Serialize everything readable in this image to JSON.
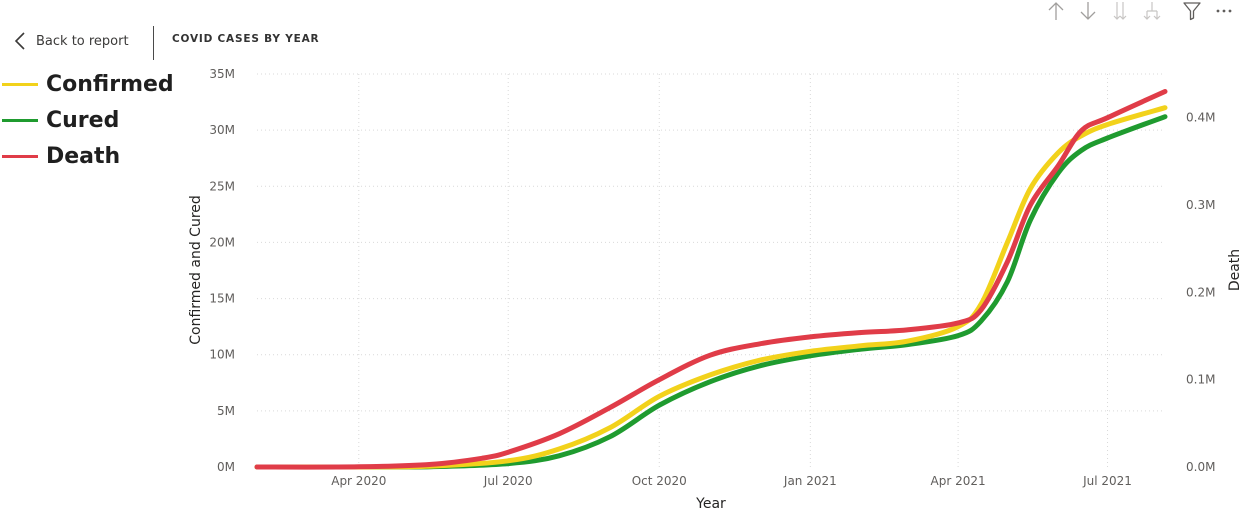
{
  "header": {
    "back_label": "Back to report",
    "page_title": "COVID CASES BY YEAR"
  },
  "toolbar": {
    "icons": [
      "drill-up-icon",
      "drill-down-icon",
      "expand-all-down-icon",
      "expand-next-level-icon",
      "filter-icon",
      "more-options-icon"
    ]
  },
  "legend": {
    "items": [
      {
        "label": "Confirmed",
        "color": "#F2D21B"
      },
      {
        "label": "Cured",
        "color": "#1F9B2F"
      },
      {
        "label": "Death",
        "color": "#E03C48"
      }
    ]
  },
  "chart_data": {
    "type": "line",
    "title": "",
    "xlabel": "Year",
    "ylabel": "Confirmed and Cured",
    "y2label": "Death",
    "x_ticks": [
      "Apr 2020",
      "Jul 2020",
      "Oct 2020",
      "Jan 2021",
      "Apr 2021",
      "Jul 2021"
    ],
    "x_tick_dates": [
      "2020-04-01",
      "2020-07-01",
      "2020-10-01",
      "2021-01-01",
      "2021-04-01",
      "2021-07-01"
    ],
    "xlim": [
      "2020-01-30",
      "2021-08-05"
    ],
    "y_ticks": [
      "0M",
      "5M",
      "10M",
      "15M",
      "20M",
      "25M",
      "30M",
      "35M"
    ],
    "ylim": [
      0,
      35000000
    ],
    "y2_ticks": [
      "0.0M",
      "0.1M",
      "0.2M",
      "0.3M",
      "0.4M"
    ],
    "y2lim": [
      0,
      0.45
    ],
    "grid": true,
    "legend_position": "top-left",
    "series": [
      {
        "name": "Confirmed",
        "axis": "left",
        "color": "#F2D21B",
        "points": [
          [
            "2020-01-30",
            0
          ],
          [
            "2020-04-01",
            0.002
          ],
          [
            "2020-05-15",
            0.08
          ],
          [
            "2020-07-01",
            0.55
          ],
          [
            "2020-08-01",
            1.6
          ],
          [
            "2020-09-01",
            3.5
          ],
          [
            "2020-10-01",
            6.3
          ],
          [
            "2020-11-01",
            8.2
          ],
          [
            "2020-12-01",
            9.5
          ],
          [
            "2021-01-01",
            10.3
          ],
          [
            "2021-02-01",
            10.8
          ],
          [
            "2021-03-01",
            11.2
          ],
          [
            "2021-04-01",
            12.5
          ],
          [
            "2021-04-15",
            14.5
          ],
          [
            "2021-05-01",
            20.0
          ],
          [
            "2021-05-15",
            24.8
          ],
          [
            "2021-06-01",
            28.0
          ],
          [
            "2021-06-15",
            29.5
          ],
          [
            "2021-07-01",
            30.5
          ],
          [
            "2021-08-05",
            32.0
          ]
        ]
      },
      {
        "name": "Cured",
        "axis": "left",
        "color": "#1F9B2F",
        "points": [
          [
            "2020-01-30",
            0
          ],
          [
            "2020-04-01",
            0.001
          ],
          [
            "2020-05-15",
            0.03
          ],
          [
            "2020-07-01",
            0.3
          ],
          [
            "2020-08-01",
            1.0
          ],
          [
            "2020-09-01",
            2.7
          ],
          [
            "2020-10-01",
            5.5
          ],
          [
            "2020-11-01",
            7.6
          ],
          [
            "2020-12-01",
            9.0
          ],
          [
            "2021-01-01",
            9.9
          ],
          [
            "2021-02-01",
            10.5
          ],
          [
            "2021-03-01",
            10.9
          ],
          [
            "2021-04-01",
            11.7
          ],
          [
            "2021-04-15",
            13.0
          ],
          [
            "2021-05-01",
            16.5
          ],
          [
            "2021-05-15",
            22.0
          ],
          [
            "2021-06-01",
            26.2
          ],
          [
            "2021-06-15",
            28.2
          ],
          [
            "2021-07-01",
            29.3
          ],
          [
            "2021-08-05",
            31.2
          ]
        ]
      },
      {
        "name": "Death",
        "axis": "right",
        "color": "#E03C48",
        "points": [
          [
            "2020-01-30",
            0
          ],
          [
            "2020-04-01",
            0.0002
          ],
          [
            "2020-05-15",
            0.003
          ],
          [
            "2020-06-15",
            0.01
          ],
          [
            "2020-07-01",
            0.017
          ],
          [
            "2020-08-01",
            0.038
          ],
          [
            "2020-09-01",
            0.068
          ],
          [
            "2020-10-01",
            0.1
          ],
          [
            "2020-11-01",
            0.128
          ],
          [
            "2020-12-01",
            0.141
          ],
          [
            "2021-01-01",
            0.149
          ],
          [
            "2021-02-01",
            0.154
          ],
          [
            "2021-03-01",
            0.157
          ],
          [
            "2021-04-01",
            0.165
          ],
          [
            "2021-04-15",
            0.18
          ],
          [
            "2021-05-01",
            0.235
          ],
          [
            "2021-05-15",
            0.3
          ],
          [
            "2021-06-01",
            0.345
          ],
          [
            "2021-06-15",
            0.385
          ],
          [
            "2021-07-01",
            0.4
          ],
          [
            "2021-08-05",
            0.43
          ]
        ]
      }
    ]
  }
}
